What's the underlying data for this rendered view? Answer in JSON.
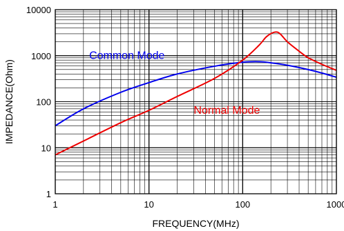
{
  "chart_data": {
    "type": "line",
    "title": "",
    "xlabel": "FREQUENCY(MHz)",
    "ylabel": "IMPEDANCE(Ohm)",
    "x_scale": "log",
    "y_scale": "log",
    "xlim": [
      1,
      1000
    ],
    "ylim": [
      1,
      10000
    ],
    "x_ticks": [
      "1",
      "10",
      "100",
      "1000"
    ],
    "y_ticks": [
      "1",
      "10",
      "100",
      "1000",
      "10000"
    ],
    "grid": true,
    "colors": {
      "grid": "#000000",
      "common": "#0000ee",
      "normal": "#ee0000"
    },
    "series": [
      {
        "name": "Common Mode",
        "color": "#0000ee",
        "x": [
          1,
          2,
          5,
          10,
          20,
          50,
          100,
          150,
          200,
          300,
          500,
          700,
          1000
        ],
        "y": [
          30,
          70,
          160,
          260,
          400,
          590,
          720,
          740,
          700,
          620,
          500,
          420,
          340
        ]
      },
      {
        "name": "Normal Mode",
        "color": "#ee0000",
        "x": [
          1,
          2,
          5,
          10,
          20,
          50,
          100,
          150,
          180,
          220,
          250,
          300,
          400,
          500,
          700,
          1000
        ],
        "y": [
          7,
          14,
          35,
          65,
          130,
          320,
          800,
          1700,
          2600,
          3250,
          3000,
          2000,
          1250,
          900,
          650,
          480
        ]
      }
    ]
  }
}
